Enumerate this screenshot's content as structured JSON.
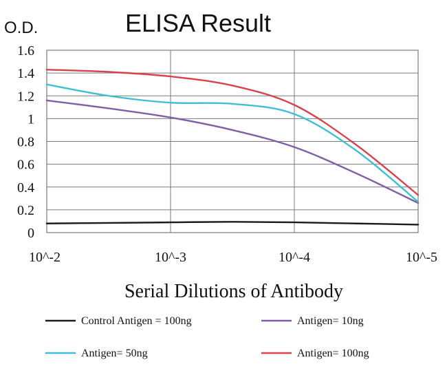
{
  "chart_data": {
    "type": "line",
    "title": "ELISA Result",
    "ylabel": "O.D.",
    "xlabel": "Serial Dilutions of Antibody",
    "categories": [
      "10^-2",
      "10^-3",
      "10^-4",
      "10^-5"
    ],
    "x": [
      0,
      0.5,
      1,
      1.5,
      2,
      2.5,
      3
    ],
    "yticks": [
      "0",
      "0.2",
      "0.4",
      "0.6",
      "0.8",
      "1",
      "1.2",
      "1.4",
      "1.6"
    ],
    "ylim": [
      0,
      1.6
    ],
    "grid": true,
    "legend_position": "bottom",
    "series": [
      {
        "name": "Control Antigen = 100ng",
        "color": "#1a1a1a",
        "values": [
          0.08,
          0.085,
          0.09,
          0.095,
          0.09,
          0.08,
          0.07
        ]
      },
      {
        "name": "Antigen= 10ng",
        "color": "#7e5fa6",
        "values": [
          1.16,
          1.09,
          1.01,
          0.9,
          0.75,
          0.52,
          0.26
        ]
      },
      {
        "name": "Antigen= 50ng",
        "color": "#3cbfd6",
        "values": [
          1.3,
          1.2,
          1.14,
          1.13,
          1.04,
          0.72,
          0.27
        ]
      },
      {
        "name": "Antigen= 100ng",
        "color": "#d8414c",
        "values": [
          1.43,
          1.41,
          1.37,
          1.29,
          1.12,
          0.77,
          0.33
        ]
      }
    ]
  }
}
